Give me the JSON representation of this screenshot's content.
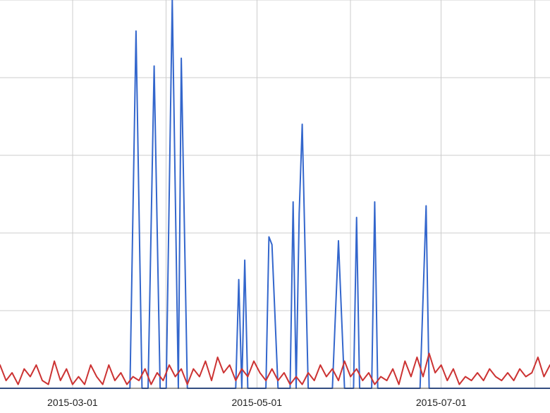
{
  "chart_data": {
    "type": "line",
    "title": "",
    "xlabel": "",
    "ylabel": "",
    "x_tick_labels": [
      "2015-03-01",
      "2015-05-01",
      "2015-07-01"
    ],
    "xlim": [
      "2015-02-05",
      "2015-08-06"
    ],
    "ylim": [
      0,
      10
    ],
    "grid": true,
    "legend": "none",
    "series": [
      {
        "color": "#3366cc",
        "points": [
          [
            "2015-02-05",
            0
          ],
          [
            "2015-03-20",
            0
          ],
          [
            "2015-03-22",
            9.2
          ],
          [
            "2015-03-24",
            0
          ],
          [
            "2015-03-26",
            0
          ],
          [
            "2015-03-28",
            8.3
          ],
          [
            "2015-03-30",
            0
          ],
          [
            "2015-04-01",
            0
          ],
          [
            "2015-04-03",
            10.0
          ],
          [
            "2015-04-05",
            0
          ],
          [
            "2015-04-06",
            8.5
          ],
          [
            "2015-04-08",
            0
          ],
          [
            "2015-04-24",
            0
          ],
          [
            "2015-04-25",
            2.8
          ],
          [
            "2015-04-26",
            0
          ],
          [
            "2015-04-27",
            3.3
          ],
          [
            "2015-04-28",
            0
          ],
          [
            "2015-05-04",
            0
          ],
          [
            "2015-05-05",
            3.9
          ],
          [
            "2015-05-06",
            3.7
          ],
          [
            "2015-05-08",
            0
          ],
          [
            "2015-05-12",
            0
          ],
          [
            "2015-05-13",
            4.8
          ],
          [
            "2015-05-14",
            0
          ],
          [
            "2015-05-15",
            4.5
          ],
          [
            "2015-05-16",
            6.8
          ],
          [
            "2015-05-18",
            0
          ],
          [
            "2015-05-26",
            0
          ],
          [
            "2015-05-28",
            3.8
          ],
          [
            "2015-05-30",
            0
          ],
          [
            "2015-06-02",
            0
          ],
          [
            "2015-06-03",
            4.4
          ],
          [
            "2015-06-04",
            0
          ],
          [
            "2015-06-08",
            0
          ],
          [
            "2015-06-09",
            4.8
          ],
          [
            "2015-06-10",
            0
          ],
          [
            "2015-06-24",
            0
          ],
          [
            "2015-06-26",
            4.7
          ],
          [
            "2015-06-27",
            0
          ],
          [
            "2015-08-06",
            0
          ]
        ]
      },
      {
        "color": "#cc3333",
        "points": [
          [
            "2015-02-05",
            0.6
          ],
          [
            "2015-02-07",
            0.2
          ],
          [
            "2015-02-09",
            0.4
          ],
          [
            "2015-02-11",
            0.1
          ],
          [
            "2015-02-13",
            0.5
          ],
          [
            "2015-02-15",
            0.3
          ],
          [
            "2015-02-17",
            0.6
          ],
          [
            "2015-02-19",
            0.2
          ],
          [
            "2015-02-21",
            0.1
          ],
          [
            "2015-02-23",
            0.7
          ],
          [
            "2015-02-25",
            0.2
          ],
          [
            "2015-02-27",
            0.5
          ],
          [
            "2015-03-01",
            0.1
          ],
          [
            "2015-03-03",
            0.3
          ],
          [
            "2015-03-05",
            0.1
          ],
          [
            "2015-03-07",
            0.6
          ],
          [
            "2015-03-09",
            0.3
          ],
          [
            "2015-03-11",
            0.1
          ],
          [
            "2015-03-13",
            0.6
          ],
          [
            "2015-03-15",
            0.2
          ],
          [
            "2015-03-17",
            0.4
          ],
          [
            "2015-03-19",
            0.1
          ],
          [
            "2015-03-21",
            0.3
          ],
          [
            "2015-03-23",
            0.2
          ],
          [
            "2015-03-25",
            0.5
          ],
          [
            "2015-03-27",
            0.1
          ],
          [
            "2015-03-29",
            0.4
          ],
          [
            "2015-03-31",
            0.2
          ],
          [
            "2015-04-02",
            0.6
          ],
          [
            "2015-04-04",
            0.3
          ],
          [
            "2015-04-06",
            0.5
          ],
          [
            "2015-04-08",
            0.1
          ],
          [
            "2015-04-10",
            0.5
          ],
          [
            "2015-04-12",
            0.3
          ],
          [
            "2015-04-14",
            0.7
          ],
          [
            "2015-04-16",
            0.2
          ],
          [
            "2015-04-18",
            0.8
          ],
          [
            "2015-04-20",
            0.4
          ],
          [
            "2015-04-22",
            0.6
          ],
          [
            "2015-04-24",
            0.2
          ],
          [
            "2015-04-26",
            0.5
          ],
          [
            "2015-04-28",
            0.3
          ],
          [
            "2015-04-30",
            0.7
          ],
          [
            "2015-05-02",
            0.4
          ],
          [
            "2015-05-04",
            0.2
          ],
          [
            "2015-05-06",
            0.5
          ],
          [
            "2015-05-08",
            0.2
          ],
          [
            "2015-05-10",
            0.4
          ],
          [
            "2015-05-12",
            0.1
          ],
          [
            "2015-05-14",
            0.3
          ],
          [
            "2015-05-16",
            0.1
          ],
          [
            "2015-05-18",
            0.4
          ],
          [
            "2015-05-20",
            0.2
          ],
          [
            "2015-05-22",
            0.6
          ],
          [
            "2015-05-24",
            0.3
          ],
          [
            "2015-05-26",
            0.5
          ],
          [
            "2015-05-28",
            0.2
          ],
          [
            "2015-05-30",
            0.7
          ],
          [
            "2015-06-01",
            0.3
          ],
          [
            "2015-06-03",
            0.5
          ],
          [
            "2015-06-05",
            0.2
          ],
          [
            "2015-06-07",
            0.4
          ],
          [
            "2015-06-09",
            0.1
          ],
          [
            "2015-06-11",
            0.3
          ],
          [
            "2015-06-13",
            0.2
          ],
          [
            "2015-06-15",
            0.5
          ],
          [
            "2015-06-17",
            0.1
          ],
          [
            "2015-06-19",
            0.7
          ],
          [
            "2015-06-21",
            0.3
          ],
          [
            "2015-06-23",
            0.8
          ],
          [
            "2015-06-25",
            0.3
          ],
          [
            "2015-06-27",
            0.9
          ],
          [
            "2015-06-29",
            0.4
          ],
          [
            "2015-07-01",
            0.6
          ],
          [
            "2015-07-03",
            0.2
          ],
          [
            "2015-07-05",
            0.5
          ],
          [
            "2015-07-07",
            0.1
          ],
          [
            "2015-07-09",
            0.3
          ],
          [
            "2015-07-11",
            0.2
          ],
          [
            "2015-07-13",
            0.4
          ],
          [
            "2015-07-15",
            0.2
          ],
          [
            "2015-07-17",
            0.5
          ],
          [
            "2015-07-19",
            0.3
          ],
          [
            "2015-07-21",
            0.2
          ],
          [
            "2015-07-23",
            0.4
          ],
          [
            "2015-07-25",
            0.2
          ],
          [
            "2015-07-27",
            0.5
          ],
          [
            "2015-07-29",
            0.3
          ],
          [
            "2015-07-31",
            0.4
          ],
          [
            "2015-08-02",
            0.8
          ],
          [
            "2015-08-04",
            0.3
          ],
          [
            "2015-08-06",
            0.6
          ]
        ]
      }
    ]
  }
}
